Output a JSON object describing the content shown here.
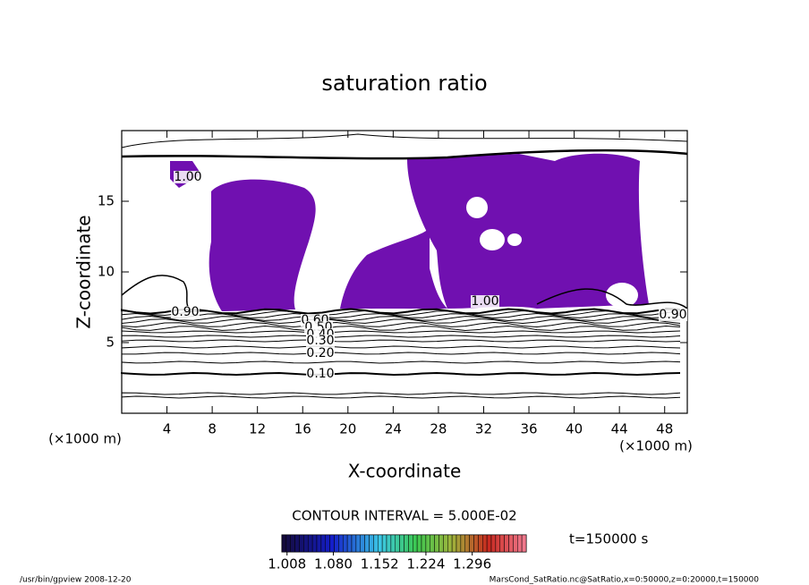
{
  "chart_data": {
    "type": "contour",
    "title": "saturation ratio",
    "x_label": "X-coordinate",
    "y_label": "Z-coordinate",
    "x_unit": "(×1000 m)",
    "y_unit": "(×1000 m)",
    "xlim": [
      0,
      50
    ],
    "xticks": [
      4,
      8,
      12,
      16,
      20,
      24,
      28,
      32,
      36,
      40,
      44,
      48
    ],
    "ylim": [
      0,
      20
    ],
    "yticks": [
      5,
      10,
      15
    ],
    "shade_color": "#7010b0",
    "contour_labels": [
      {
        "value": 1,
        "label": "1.00"
      },
      {
        "value": 0.9,
        "label": "0.90"
      },
      {
        "value": 0.6,
        "label": "0.60"
      },
      {
        "value": 0.5,
        "label": "0.50"
      },
      {
        "value": 0.4,
        "label": "0.40"
      },
      {
        "value": 0.3,
        "label": "0.30"
      },
      {
        "value": 0.2,
        "label": "0.20"
      },
      {
        "value": 0.1,
        "label": "0.10"
      },
      {
        "value": 1,
        "label": "1.00"
      },
      {
        "value": 0.9,
        "label": "0.90"
      }
    ],
    "contour_interval": "CONTOUR INTERVAL = 5.000E-02",
    "time_label": "t=150000 s",
    "clim": [
      1.0,
      1.38
    ],
    "colorbar_ticks": [
      {
        "value": 1.008,
        "label": "1.008"
      },
      {
        "value": 1.08,
        "label": "1.080"
      },
      {
        "value": 1.152,
        "label": "1.152"
      },
      {
        "value": 1.224,
        "label": "1.224"
      },
      {
        "value": 1.296,
        "label": "1.296"
      }
    ],
    "footer_left": "/usr/bin/gpview  2008-12-20",
    "footer_right": "MarsCond_SatRatio.nc@SatRatio,x=0:50000,z=0:20000,t=150000"
  }
}
